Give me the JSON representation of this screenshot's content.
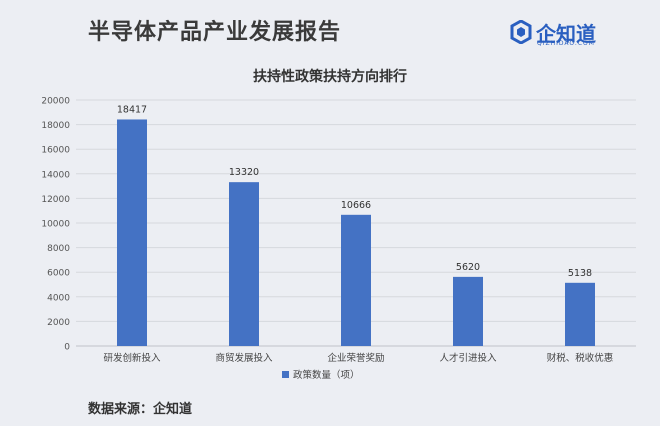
{
  "header": {
    "title": "半导体产品产业发展报告",
    "brand_name": "企知道",
    "brand_sub": "QIZHIDAO.COM"
  },
  "footer": {
    "source": "数据来源：企知道"
  },
  "colors": {
    "bar": "#4472c4",
    "background": "#eceef3",
    "grid": "#d6d8dd",
    "brand": "#2a5fc0"
  },
  "chart_data": {
    "type": "bar",
    "title": "扶持性政策扶持方向排行",
    "categories": [
      "研发创新投入",
      "商贸发展投入",
      "企业荣誉奖励",
      "人才引进投入",
      "财税、税收优惠"
    ],
    "series": [
      {
        "name": "政策数量（项）",
        "values": [
          18417,
          13320,
          10666,
          5620,
          5138
        ]
      }
    ],
    "ylim": [
      0,
      20000
    ],
    "yticks": [
      0,
      2000,
      4000,
      6000,
      8000,
      10000,
      12000,
      14000,
      16000,
      18000,
      20000
    ],
    "grid": true,
    "legend_position": "bottom",
    "data_labels": true
  }
}
